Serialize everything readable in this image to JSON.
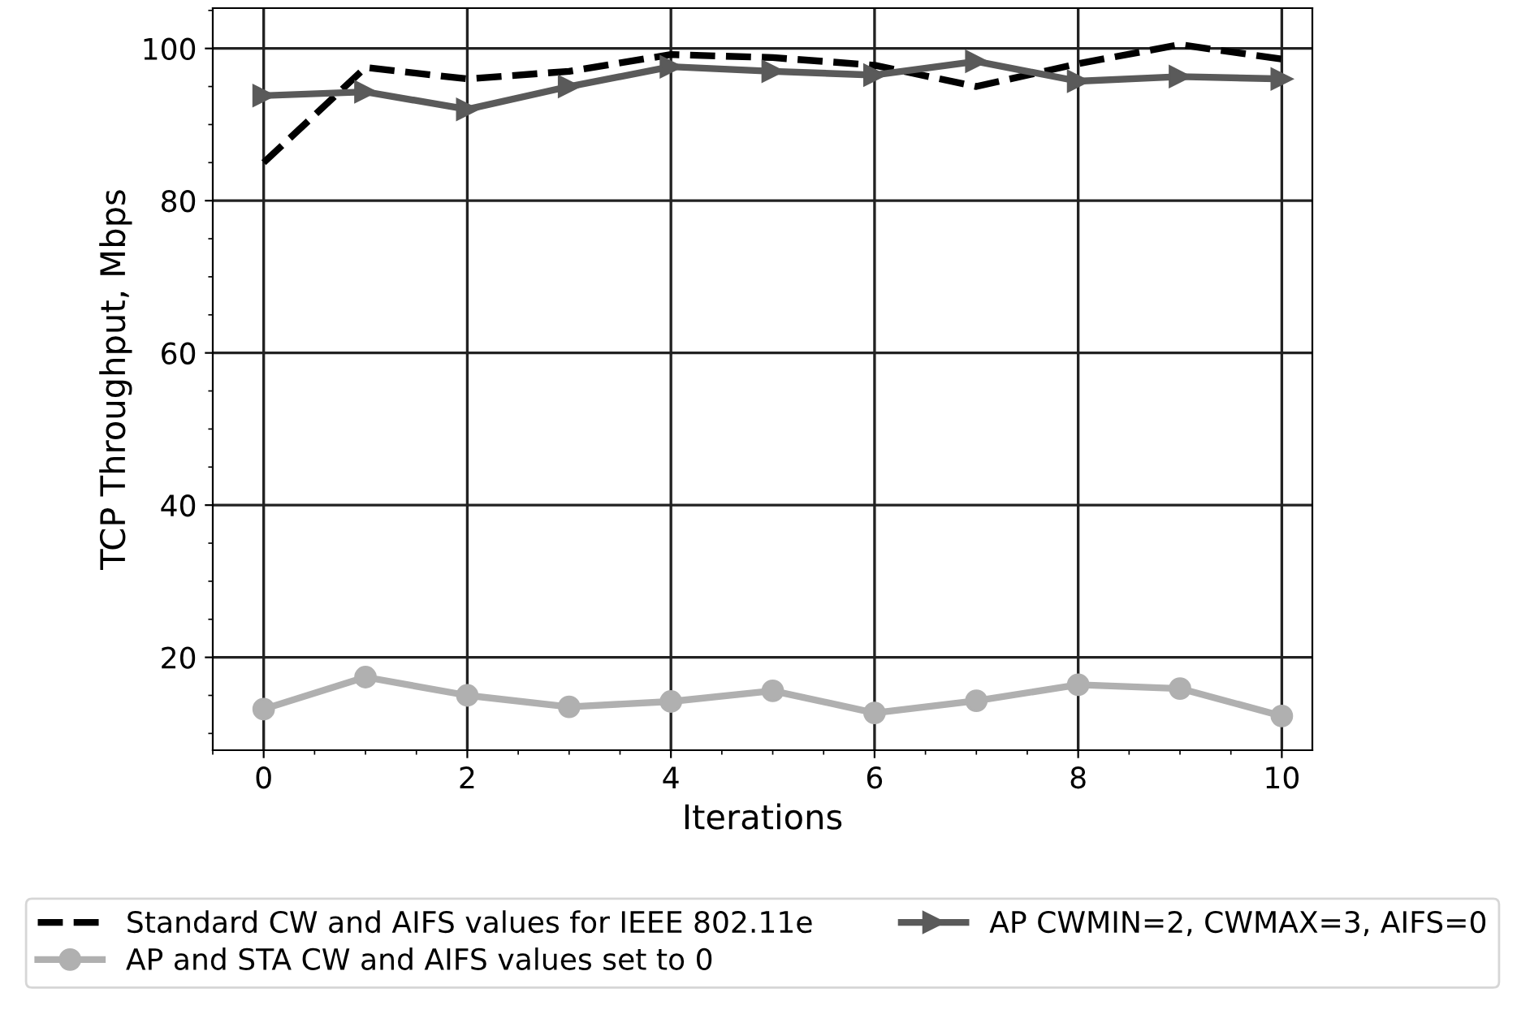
{
  "chart_data": {
    "type": "line",
    "xlabel": "Iterations",
    "ylabel": "TCP Throughput, Mbps",
    "x": [
      0,
      1,
      2,
      3,
      4,
      5,
      6,
      7,
      8,
      9,
      10
    ],
    "series": [
      {
        "name": "Standard CW and AIFS values for IEEE 802.11e",
        "color": "#000000",
        "line_style": "dashed",
        "marker": "none",
        "values": [
          85,
          97.5,
          96,
          97,
          99.2,
          98.8,
          97.8,
          95,
          98,
          100.5,
          98.6
        ]
      },
      {
        "name": "AP and STA CW and AIFS values set to 0",
        "color": "#b0b0b0",
        "line_style": "solid",
        "marker": "circle",
        "values": [
          13.2,
          17.4,
          15,
          13.5,
          14.2,
          15.6,
          12.7,
          14.3,
          16.4,
          15.9,
          12.3
        ]
      },
      {
        "name": "AP CWMIN=2, CWMAX=3, AIFS=0",
        "color": "#5a5a5a",
        "line_style": "solid",
        "marker": "triangle",
        "values": [
          93.8,
          94.3,
          92,
          95,
          97.6,
          97,
          96.5,
          98.3,
          95.7,
          96.3,
          96
        ]
      }
    ],
    "xlim": [
      -0.5,
      10.3
    ],
    "ylim": [
      7.8,
      105.3
    ],
    "xticks": [
      0,
      2,
      4,
      6,
      8,
      10
    ],
    "yticks": [
      20,
      40,
      60,
      80,
      100
    ],
    "grid": true,
    "legend": "bottom"
  }
}
